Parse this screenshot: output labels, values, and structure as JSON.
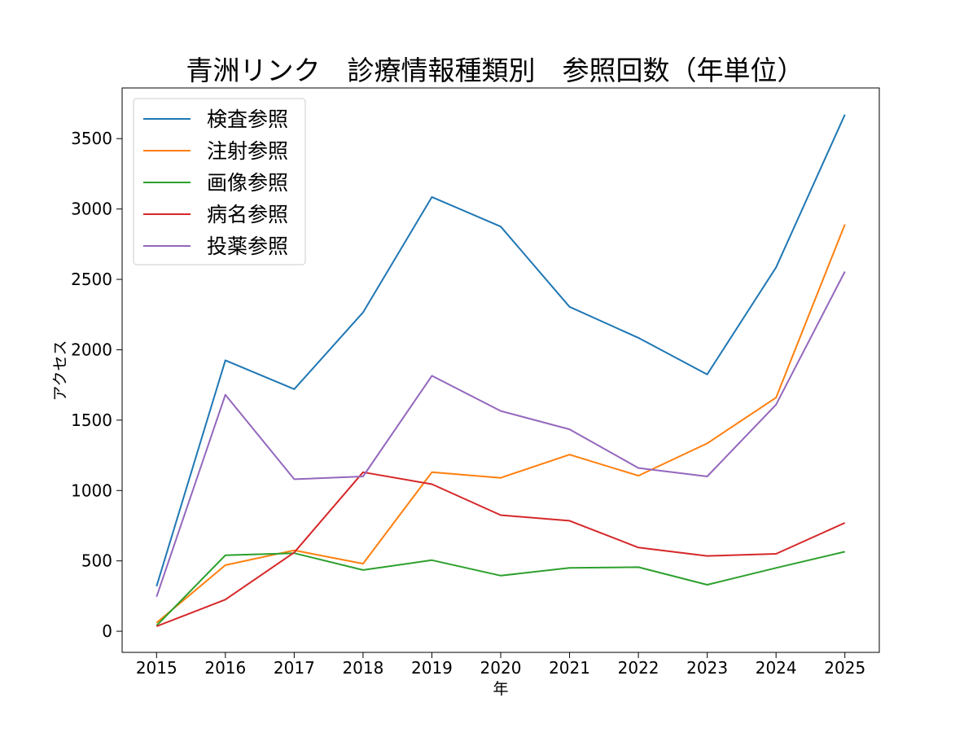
{
  "chart_data": {
    "type": "line",
    "title": "青洲リンク　診療情報種類別　参照回数（年単位）",
    "xlabel": "年",
    "ylabel": "アクセス",
    "x": [
      2015,
      2016,
      2017,
      2018,
      2019,
      2020,
      2021,
      2022,
      2023,
      2024,
      2025
    ],
    "yticks": [
      0,
      500,
      1000,
      1500,
      2000,
      2500,
      3000,
      3500
    ],
    "ylim": [
      -150,
      3860
    ],
    "xlim": [
      2014.5,
      2025.5
    ],
    "grid": false,
    "legend_position": "upper-left",
    "series": [
      {
        "name": "検査参照",
        "color": "#1f77b4",
        "values": [
          320,
          1925,
          1720,
          2265,
          3085,
          2875,
          2305,
          2085,
          1825,
          2585,
          3670
        ]
      },
      {
        "name": "注射参照",
        "color": "#ff7f0e",
        "values": [
          60,
          470,
          575,
          480,
          1130,
          1090,
          1255,
          1105,
          1335,
          1660,
          2890
        ]
      },
      {
        "name": "画像参照",
        "color": "#2ca02c",
        "values": [
          40,
          540,
          555,
          435,
          505,
          395,
          450,
          455,
          330,
          450,
          565
        ]
      },
      {
        "name": "病名参照",
        "color": "#d62728",
        "values": [
          35,
          225,
          560,
          1130,
          1045,
          825,
          785,
          595,
          535,
          550,
          770
        ]
      },
      {
        "name": "投薬参照",
        "color": "#9467bd",
        "values": [
          245,
          1680,
          1080,
          1100,
          1815,
          1565,
          1435,
          1160,
          1100,
          1610,
          2555
        ]
      }
    ]
  }
}
